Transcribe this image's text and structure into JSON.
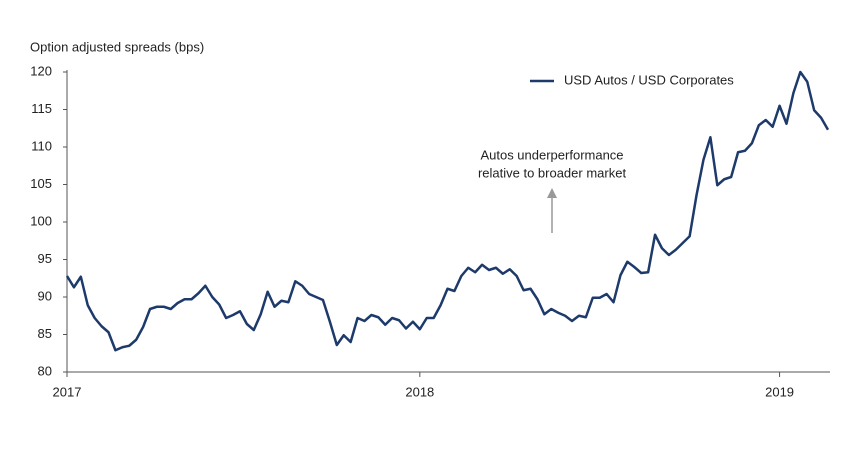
{
  "chart_data": {
    "type": "line",
    "y_axis_label": "Option adjusted spreads (bps)",
    "annotation": [
      "Autos underperformance",
      "relative to broader market"
    ],
    "legend": "top-right",
    "ylim": [
      80,
      120
    ],
    "yticks": [
      80,
      85,
      90,
      95,
      100,
      105,
      110,
      115,
      120
    ],
    "grid": false,
    "categories": [
      "2017",
      null,
      null,
      null,
      null,
      null,
      null,
      null,
      null,
      null,
      null,
      null,
      null,
      null,
      null,
      null,
      null,
      null,
      null,
      null,
      null,
      null,
      null,
      null,
      null,
      null,
      null,
      null,
      null,
      null,
      null,
      null,
      null,
      null,
      null,
      null,
      null,
      null,
      null,
      null,
      null,
      null,
      null,
      null,
      null,
      null,
      null,
      null,
      null,
      null,
      null,
      "2018",
      null,
      null,
      null,
      null,
      null,
      null,
      null,
      null,
      null,
      null,
      null,
      null,
      null,
      null,
      null,
      null,
      null,
      null,
      null,
      null,
      null,
      null,
      null,
      null,
      null,
      null,
      null,
      null,
      null,
      null,
      null,
      null,
      null,
      null,
      null,
      null,
      null,
      null,
      null,
      null,
      null,
      null,
      null,
      null,
      null,
      null,
      null,
      null,
      null,
      null,
      null,
      "2019",
      null,
      null,
      null,
      null,
      null,
      null,
      null
    ],
    "series": [
      {
        "name": "USD Autos / USD Corporates",
        "color": "#1d3a6b",
        "values": [
          92.8,
          91.3,
          92.7,
          88.9,
          87.2,
          86.1,
          85.3,
          82.9,
          83.3,
          83.5,
          84.3,
          86.0,
          88.4,
          88.7,
          88.7,
          88.4,
          89.2,
          89.7,
          89.7,
          90.5,
          91.5,
          90.0,
          89.0,
          87.2,
          87.6,
          88.1,
          86.4,
          85.6,
          87.7,
          90.7,
          88.7,
          89.5,
          89.3,
          92.1,
          91.5,
          90.4,
          90.0,
          89.6,
          86.7,
          83.6,
          84.9,
          84.0,
          87.2,
          86.8,
          87.6,
          87.3,
          86.3,
          87.2,
          86.9,
          85.8,
          86.7,
          85.7,
          87.2,
          87.2,
          88.9,
          91.1,
          90.8,
          92.8,
          93.9,
          93.3,
          94.3,
          93.6,
          93.9,
          93.1,
          93.7,
          92.8,
          90.9,
          91.1,
          89.7,
          87.7,
          88.4,
          87.9,
          87.5,
          86.8,
          87.5,
          87.3,
          89.9,
          89.9,
          90.4,
          89.3,
          92.9,
          94.7,
          94.0,
          93.2,
          93.3,
          98.3,
          96.5,
          95.6,
          96.3,
          97.2,
          98.1,
          103.6,
          108.3,
          111.3,
          104.9,
          105.7,
          106.0,
          109.3,
          109.5,
          110.5,
          112.9,
          113.6,
          112.7,
          115.5,
          113.1,
          117.2,
          120.0,
          118.7,
          114.9,
          113.9,
          112.3
        ]
      }
    ]
  }
}
